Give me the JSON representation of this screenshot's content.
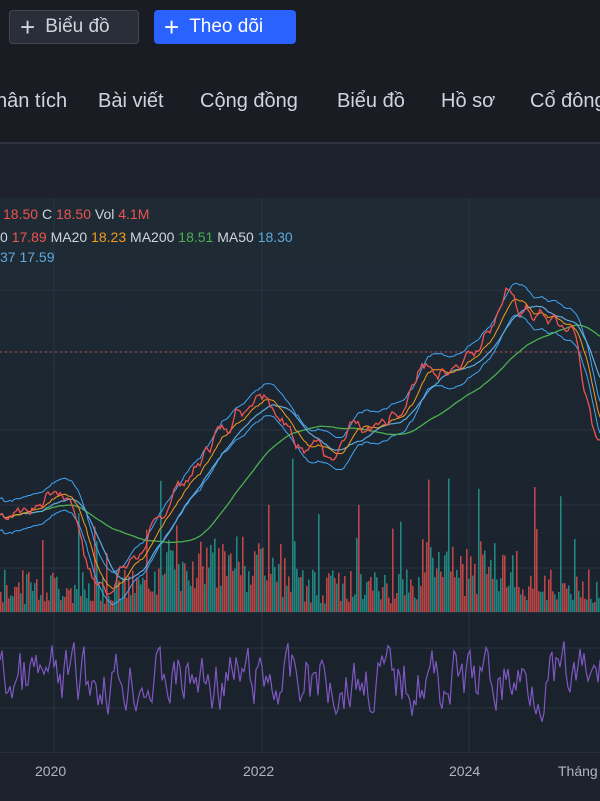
{
  "header": {
    "chart_button": "Biểu đồ",
    "follow_button": "Theo dõi",
    "plus_glyph": "+"
  },
  "nav": {
    "items": [
      "hân tích",
      "Bài viết",
      "Cộng đồng",
      "Biểu đồ",
      "Hồ sơ",
      "Cổ đông"
    ]
  },
  "legend": {
    "line1": {
      "low_value": "18.50",
      "close_label": "C",
      "close_value": "18.50",
      "vol_label": "Vol",
      "vol_value": "4.1M"
    },
    "line2": {
      "ma_partial": "0",
      "ma_partial_value": "17.89",
      "ma20_label": "MA20",
      "ma20_value": "18.23",
      "ma200_label": "MA200",
      "ma200_value": "18.51",
      "ma50_label": "MA50",
      "ma50_value": "18.30"
    },
    "line3": {
      "partial_value": "37",
      "value": "17.59"
    }
  },
  "colors": {
    "up": "#26a69a",
    "down": "#ef5350",
    "ma_fast": "#ef5350",
    "ma20": "#f59c1a",
    "ma200": "#4caf50",
    "ma50": "#5fa9dd",
    "bollinger": "#42a5f5",
    "oscillator": "#7e57c2",
    "accent": "#2962ff"
  },
  "chart_data": {
    "type": "line",
    "x_ticks": [
      "2020",
      "2022",
      "2024",
      "Tháng"
    ],
    "price_approx": [
      [
        "2019-07",
        17.2
      ],
      [
        "2019-10",
        17.3
      ],
      [
        "2020-01",
        17.6
      ],
      [
        "2020-03",
        17.4
      ],
      [
        "2020-05",
        16.1
      ],
      [
        "2020-07",
        15.9
      ],
      [
        "2020-09",
        16.3
      ],
      [
        "2020-11",
        16.6
      ],
      [
        "2021-01",
        17.1
      ],
      [
        "2021-03",
        17.7
      ],
      [
        "2021-05",
        17.9
      ],
      [
        "2021-07",
        18.5
      ],
      [
        "2021-09",
        18.8
      ],
      [
        "2021-11",
        19.1
      ],
      [
        "2022-01",
        19.4
      ],
      [
        "2022-03",
        18.8
      ],
      [
        "2022-05",
        18.4
      ],
      [
        "2022-07",
        18.5
      ],
      [
        "2022-09",
        18.0
      ],
      [
        "2022-11",
        18.7
      ],
      [
        "2023-01",
        18.6
      ],
      [
        "2023-03",
        18.8
      ],
      [
        "2023-05",
        19.0
      ],
      [
        "2023-07",
        19.8
      ],
      [
        "2023-09",
        19.6
      ],
      [
        "2023-11",
        19.8
      ],
      [
        "2024-01",
        20.0
      ],
      [
        "2024-03",
        20.4
      ],
      [
        "2024-05",
        21.0
      ],
      [
        "2024-07",
        20.7
      ],
      [
        "2024-09",
        20.6
      ],
      [
        "2024-11",
        20.5
      ],
      [
        "2025-01",
        20.3
      ],
      [
        "2025-03",
        18.5
      ]
    ],
    "reference_line": 20.0
  }
}
